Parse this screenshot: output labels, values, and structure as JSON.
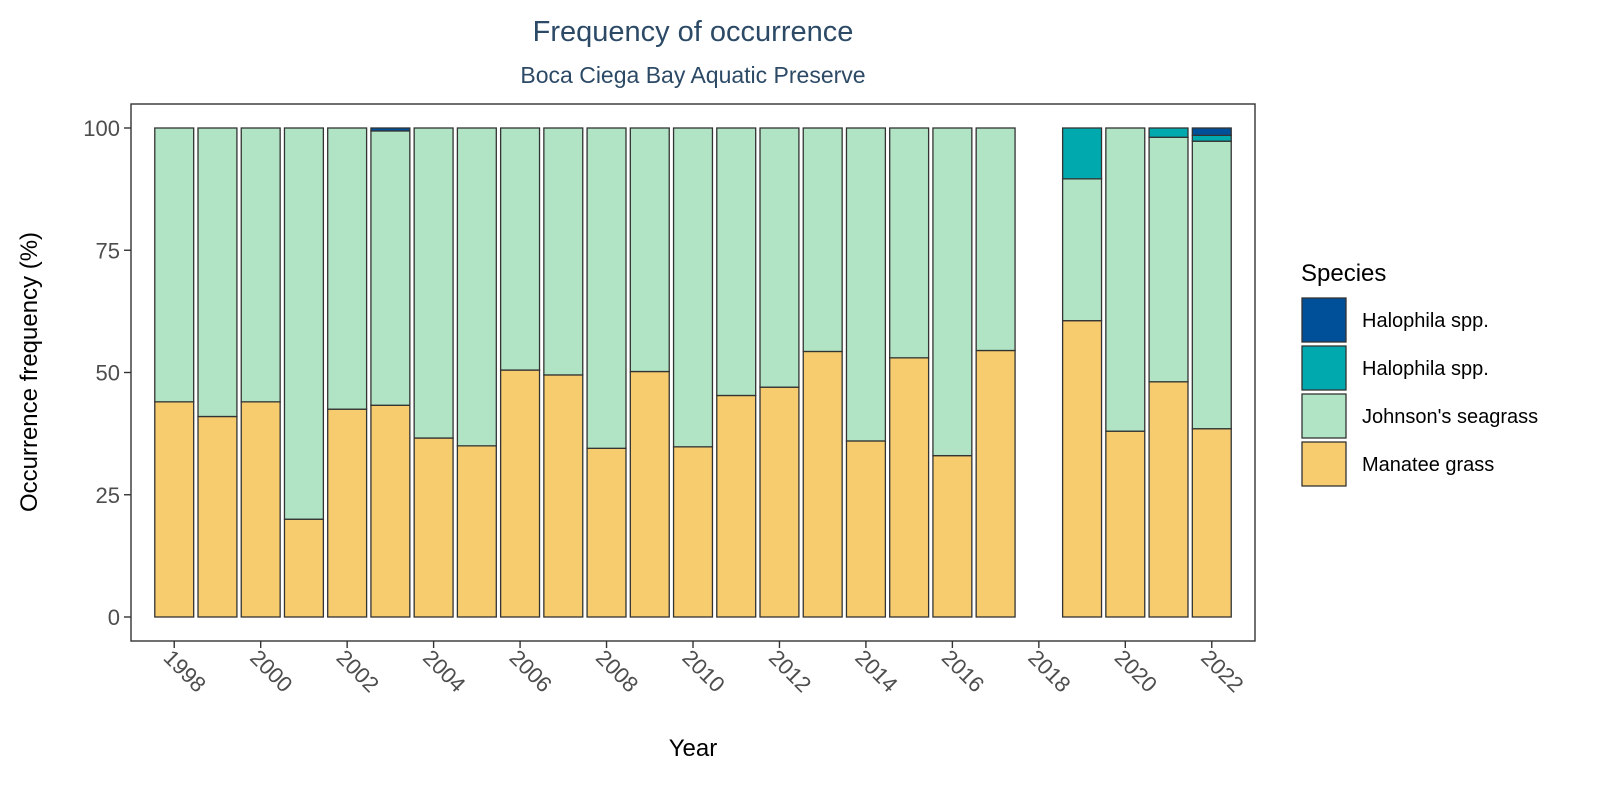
{
  "chart_data": {
    "type": "bar",
    "stacked": true,
    "title": "Frequency of occurrence",
    "subtitle": "Boca Ciega Bay Aquatic Preserve",
    "xlabel": "Year",
    "ylabel": "Occurrence frequency (%)",
    "ylim": [
      0,
      100
    ],
    "yticks": [
      0,
      25,
      50,
      75,
      100
    ],
    "xlim": [
      1997,
      2023
    ],
    "xticks": [
      1998,
      2000,
      2002,
      2004,
      2006,
      2008,
      2010,
      2012,
      2014,
      2016,
      2018,
      2020,
      2022
    ],
    "legend_title": "Species",
    "legend_position": "right",
    "grid": false,
    "x": [
      1998,
      1999,
      2000,
      2001,
      2002,
      2003,
      2004,
      2005,
      2006,
      2007,
      2008,
      2009,
      2010,
      2011,
      2012,
      2013,
      2014,
      2015,
      2016,
      2017,
      2019,
      2020,
      2021,
      2022
    ],
    "series": [
      {
        "name": "Manatee grass",
        "color": "#f7cc6e",
        "values": [
          44,
          41,
          44,
          20,
          42.5,
          43.3,
          36.6,
          35,
          50.5,
          49.5,
          34.5,
          50.2,
          34.8,
          45.3,
          47,
          54.3,
          36,
          53,
          33,
          54.5,
          60.6,
          38,
          48.1,
          38.5
        ]
      },
      {
        "name": "Johnson's seagrass",
        "color": "#b0e4c5",
        "values": [
          56,
          59,
          56,
          80,
          57.5,
          56.1,
          63.4,
          65,
          49.5,
          50.5,
          65.5,
          49.8,
          65.2,
          54.7,
          53,
          45.7,
          64,
          47,
          67,
          45.5,
          29,
          62,
          50,
          58.8
        ]
      },
      {
        "name": "Halophila spp.",
        "color": "#00a9ad",
        "values": [
          0,
          0,
          0,
          0,
          0,
          0,
          0,
          0,
          0,
          0,
          0,
          0,
          0,
          0,
          0,
          0,
          0,
          0,
          0,
          0,
          10.4,
          0,
          1.9,
          1.2
        ]
      },
      {
        "name": "Halophila spp.",
        "color": "#004f99",
        "values": [
          0,
          0,
          0,
          0,
          0,
          0.6,
          0,
          0,
          0,
          0,
          0,
          0,
          0,
          0,
          0,
          0,
          0,
          0,
          0,
          0,
          0,
          0,
          0,
          1.5
        ]
      }
    ]
  }
}
